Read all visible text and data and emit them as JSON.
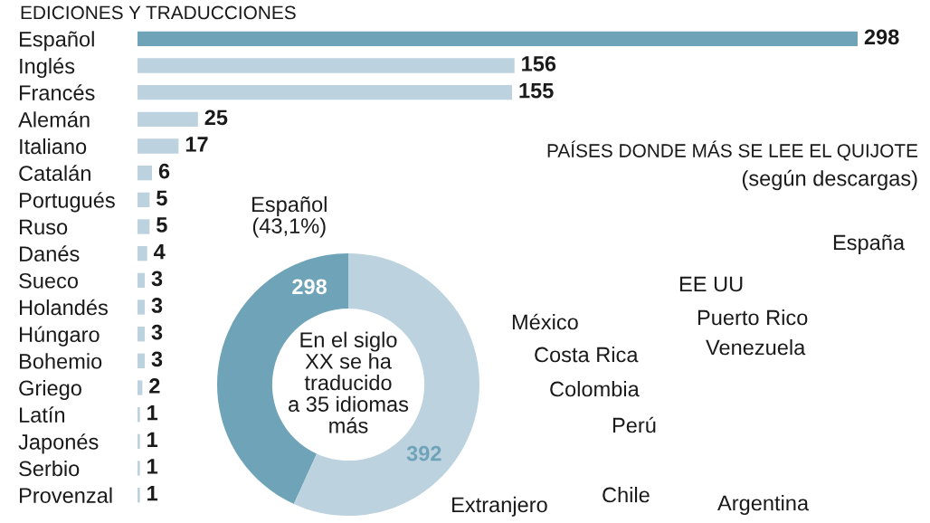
{
  "chart_data": [
    {
      "type": "bar",
      "orientation": "horizontal",
      "title": "EDICIONES Y TRADUCCIONES",
      "tick_labels": "y",
      "data_labels": true,
      "xlim": [
        0,
        298
      ],
      "categories": [
        "Español",
        "Inglés",
        "Francés",
        "Alemán",
        "Italiano",
        "Catalán",
        "Portugués",
        "Ruso",
        "Danés",
        "Sueco",
        "Holandés",
        "Húngaro",
        "Bohemio",
        "Griego",
        "Latín",
        "Japonés",
        "Serbio",
        "Provenzal"
      ],
      "values": [
        298,
        156,
        155,
        25,
        17,
        6,
        5,
        5,
        4,
        3,
        3,
        3,
        3,
        2,
        1,
        1,
        1,
        1
      ],
      "colors": [
        "#6ea3b8",
        "#bcd2df",
        "#bcd2df",
        "#bcd2df",
        "#bcd2df",
        "#bcd2df",
        "#bcd2df",
        "#bcd2df",
        "#bcd2df",
        "#bcd2df",
        "#bcd2df",
        "#bcd2df",
        "#bcd2df",
        "#bcd2df",
        "#bcd2df",
        "#bcd2df",
        "#bcd2df",
        "#bcd2df"
      ]
    },
    {
      "type": "donut",
      "categories": [
        "Español\n(43,1%)",
        "Extranjero"
      ],
      "values": [
        298,
        392
      ],
      "value_labels": [
        "298",
        "392"
      ],
      "colors": [
        "#6ea3b8",
        "#bcd2df"
      ],
      "annotations": [
        "En el siglo\nXX se ha\ntraducido\na 35 idiomas\nmás"
      ]
    },
    {
      "type": "other",
      "title": "PAÍSES DONDE MÁS SE LEE EL QUIJOTE",
      "subtitle": "(según descargas)",
      "annotations": [
        "España",
        "EE UU",
        "Puerto Rico",
        "México",
        "Costa Rica",
        "Venezuela",
        "Colombia",
        "Perú",
        "Chile",
        "Argentina"
      ]
    }
  ]
}
